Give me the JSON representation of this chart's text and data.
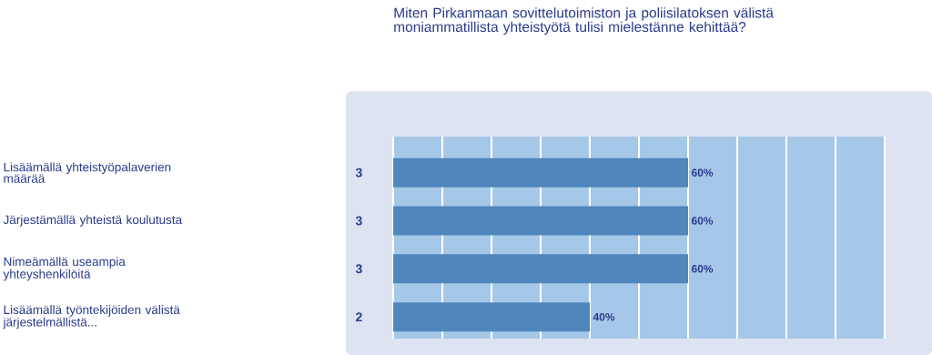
{
  "chart_data": {
    "type": "bar",
    "orientation": "horizontal",
    "title": "Miten Pirkanmaan sovittelutoimiston ja poliisilatoksen välistä moniammatillista yhteistyötä tulisi mielestänne kehittää?",
    "categories": [
      "Lisäämällä yhteistyöpalaverien määrää",
      "Järjestämällä yhteistä koulutusta",
      "Nimeämällä useampia yhteyshenkilöitä",
      "Lisäämällä työntekijöiden välistä järjestelmällistä..."
    ],
    "values": [
      60,
      60,
      60,
      40
    ],
    "value_labels": [
      "60%",
      "60%",
      "60%",
      "40%"
    ],
    "color": "#4f86bb",
    "xlim": [
      0,
      100
    ],
    "xticks": [
      {
        "value": 0,
        "label": null
      },
      {
        "value": 10,
        "label": null
      },
      {
        "value": 20,
        "label": null
      },
      {
        "value": 30,
        "label": null
      },
      {
        "value": 40,
        "label": null
      },
      {
        "value": 50,
        "label": null
      },
      {
        "value": 60,
        "label": null
      },
      {
        "value": 70,
        "label": null
      },
      {
        "value": 80,
        "label": null
      },
      {
        "value": 90,
        "label": null
      },
      {
        "value": 100,
        "label": null
      }
    ],
    "grid": "x",
    "tick_labels": "y",
    "annotations": [
      "3",
      "3",
      "3",
      "2"
    ]
  }
}
